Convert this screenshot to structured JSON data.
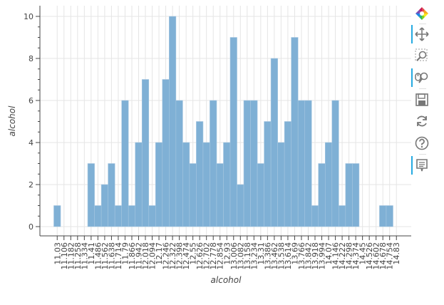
{
  "chart_data": {
    "type": "bar",
    "xlabel": "alcohol",
    "ylabel": "alcohol",
    "ylim": [
      0,
      10.5
    ],
    "yticks": [
      0,
      2,
      4,
      6,
      8,
      10
    ],
    "grid": true,
    "categories": [
      "11.03",
      "11.106",
      "11.182",
      "11.258",
      "11.334",
      "11.41",
      "11.486",
      "11.562",
      "11.638",
      "11.714",
      "11.79",
      "11.866",
      "11.942",
      "12.018",
      "12.094",
      "12.17",
      "12.246",
      "12.322",
      "12.398",
      "12.474",
      "12.55",
      "12.626",
      "12.702",
      "12.778",
      "12.854",
      "12.93",
      "13.006",
      "13.082",
      "13.158",
      "13.234",
      "13.31",
      "13.386",
      "13.462",
      "13.538",
      "13.614",
      "13.69",
      "13.766",
      "13.842",
      "13.918",
      "13.994",
      "14.07",
      "14.146",
      "14.222",
      "14.298",
      "14.374",
      "14.45",
      "14.526",
      "14.602",
      "14.678",
      "14.754",
      "14.83"
    ],
    "values": [
      1,
      0,
      0,
      0,
      0,
      3,
      1,
      2,
      3,
      1,
      6,
      1,
      4,
      7,
      1,
      4,
      7,
      10,
      6,
      4,
      3,
      5,
      4,
      6,
      3,
      4,
      9,
      2,
      6,
      6,
      3,
      5,
      8,
      4,
      5,
      9,
      6,
      6,
      1,
      3,
      4,
      6,
      1,
      3,
      3,
      0,
      0,
      0,
      1,
      1,
      0
    ],
    "colors": {
      "bar_fill": "#7fb0d5",
      "bar_stroke": "#a5c6e0",
      "grid": "#e5e5e5",
      "axis": "#444444"
    }
  },
  "toolbar": {
    "tools": [
      {
        "name": "bokeh-logo",
        "icon": "bokeh-logo-icon",
        "active": false
      },
      {
        "name": "pan",
        "icon": "pan-icon",
        "active": true
      },
      {
        "name": "box-zoom",
        "icon": "box-zoom-icon",
        "active": false
      },
      {
        "name": "wheel-zoom",
        "icon": "wheel-zoom-icon",
        "active": true
      },
      {
        "name": "save",
        "icon": "save-icon",
        "active": false
      },
      {
        "name": "reset",
        "icon": "reset-icon",
        "active": false
      },
      {
        "name": "help",
        "icon": "help-icon",
        "active": false
      },
      {
        "name": "hover",
        "icon": "hover-icon",
        "active": true
      }
    ]
  }
}
